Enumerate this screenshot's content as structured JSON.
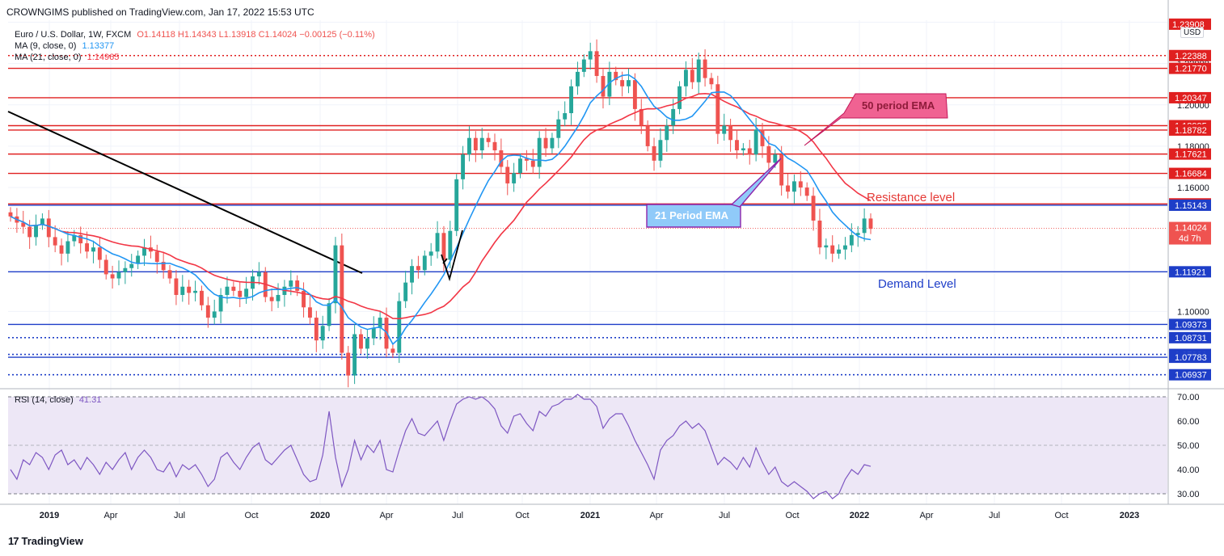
{
  "header": {
    "publisher": "CROWNGIMS published on TradingView.com, Jan 17, 2022 15:53 UTC"
  },
  "legend": {
    "symbol": "Euro / U.S. Dollar, 1W, FXCM",
    "ohlc": "O1.14118 H1.14343 L1.13918 C1.14024 −0.00125 (−0.11%)",
    "ma9_label": "MA (9, close, 0)",
    "ma9_value": "1.13377",
    "ma21_label": "MA (21, close, 0)",
    "ma21_value": "1.14965",
    "rsi_label": "RSI (14, close)",
    "rsi_value": "41.31"
  },
  "currency_badge": "USD",
  "annotations": {
    "ema50": "50 period EMA",
    "ema21": "21 Period EMA",
    "resistance": "Resistance level",
    "demand": "Demand Level"
  },
  "footer": {
    "logo_mark": "17",
    "logo_text": "TradingView"
  },
  "colors": {
    "red_level": "#e02020",
    "blue_level": "#1e3ec8",
    "ma9": "#2196f3",
    "ma21": "#f23645",
    "up": "#26a69a",
    "down": "#ef5350",
    "rsi": "#7e57c2",
    "rsi_band": "#ede7f6"
  },
  "chart_data": [
    {
      "type": "candlestick",
      "symbol": "Euro / U.S. Dollar",
      "timeframe": "1W",
      "price_axis_ticks": [
        "1.24000",
        "1.22000",
        "1.20000",
        "1.18000",
        "1.16000",
        "1.10000"
      ],
      "time_axis_ticks": [
        "2019",
        "Apr",
        "Jul",
        "Oct",
        "2020",
        "Apr",
        "Jul",
        "Oct",
        "2021",
        "Apr",
        "Jul",
        "Oct",
        "2022",
        "Apr",
        "Jul",
        "Oct",
        "2023"
      ],
      "ylim": [
        1.063,
        1.241
      ],
      "horizontal_levels": [
        {
          "value": 1.22388,
          "label": "1.22388",
          "color": "#e02020",
          "style": "dotted"
        },
        {
          "value": 1.2177,
          "label": "1.21770",
          "color": "#e02020",
          "style": "solid"
        },
        {
          "value": 1.20347,
          "label": "1.20347",
          "color": "#e02020",
          "style": "solid"
        },
        {
          "value": 1.18995,
          "label": "1.18995",
          "color": "#e02020",
          "style": "solid"
        },
        {
          "value": 1.18782,
          "label": "1.18782",
          "color": "#e02020",
          "style": "solid"
        },
        {
          "value": 1.17621,
          "label": "1.17621",
          "color": "#e02020",
          "style": "solid"
        },
        {
          "value": 1.16684,
          "label": "1.16684",
          "color": "#e02020",
          "style": "solid"
        },
        {
          "value": 1.15209,
          "label": "1.15209",
          "color": "#e02020",
          "style": "solid"
        },
        {
          "value": 1.15143,
          "label": "1.15143",
          "color": "#1e3ec8",
          "style": "solid"
        },
        {
          "value": 1.11921,
          "label": "1.11921",
          "color": "#1e3ec8",
          "style": "solid"
        },
        {
          "value": 1.09373,
          "label": "1.09373",
          "color": "#1e3ec8",
          "style": "solid"
        },
        {
          "value": 1.08731,
          "label": "1.08731",
          "color": "#1e3ec8",
          "style": "dotted"
        },
        {
          "value": 1.07921,
          "label": "1.07921",
          "color": "#1e3ec8",
          "style": "dotted"
        },
        {
          "value": 1.07783,
          "label": "1.07783",
          "color": "#1e3ec8",
          "style": "solid"
        },
        {
          "value": 1.06937,
          "label": "1.06937",
          "color": "#1e3ec8",
          "style": "dotted"
        }
      ],
      "current_price": {
        "value": 1.14024,
        "label": "1.14024",
        "countdown": "4d 7h"
      },
      "top_partial_label": {
        "value": 1.23908,
        "label": "1.23908"
      },
      "series": [
        {
          "name": "MA (9, close, 0)",
          "last": 1.13377
        },
        {
          "name": "MA (21, close, 0)",
          "last": 1.14965
        }
      ],
      "close_series": [
        1.146,
        1.143,
        1.141,
        1.136,
        1.142,
        1.145,
        1.136,
        1.132,
        1.128,
        1.134,
        1.137,
        1.133,
        1.129,
        1.131,
        1.125,
        1.118,
        1.116,
        1.119,
        1.121,
        1.123,
        1.127,
        1.131,
        1.129,
        1.124,
        1.12,
        1.116,
        1.108,
        1.112,
        1.109,
        1.11,
        1.103,
        1.097,
        1.1,
        1.108,
        1.112,
        1.11,
        1.107,
        1.111,
        1.117,
        1.119,
        1.107,
        1.105,
        1.108,
        1.112,
        1.115,
        1.11,
        1.102,
        1.097,
        1.086,
        1.093,
        1.104,
        1.132,
        1.08,
        1.069,
        1.089,
        1.082,
        1.087,
        1.092,
        1.097,
        1.082,
        1.08,
        1.105,
        1.114,
        1.122,
        1.12,
        1.127,
        1.129,
        1.138,
        1.125,
        1.139,
        1.164,
        1.176,
        1.184,
        1.178,
        1.184,
        1.182,
        1.178,
        1.17,
        1.162,
        1.167,
        1.174,
        1.173,
        1.17,
        1.184,
        1.179,
        1.184,
        1.193,
        1.196,
        1.209,
        1.216,
        1.222,
        1.226,
        1.214,
        1.204,
        1.216,
        1.212,
        1.209,
        1.212,
        1.198,
        1.19,
        1.18,
        1.173,
        1.183,
        1.19,
        1.198,
        1.209,
        1.217,
        1.211,
        1.222,
        1.213,
        1.21,
        1.186,
        1.19,
        1.183,
        1.178,
        1.179,
        1.176,
        1.188,
        1.18,
        1.172,
        1.176,
        1.161,
        1.158,
        1.163,
        1.16,
        1.156,
        1.144,
        1.131,
        1.132,
        1.128,
        1.13,
        1.132,
        1.137,
        1.138,
        1.145,
        1.14
      ],
      "rsi": {
        "name": "RSI (14, close)",
        "last": 41.31,
        "ticks": [
          "70.00",
          "60.00",
          "50.00",
          "40.00",
          "30.00"
        ],
        "band": [
          30,
          70
        ],
        "values": [
          40,
          36,
          44,
          42,
          47,
          45,
          40,
          46,
          48,
          42,
          44,
          40,
          45,
          42,
          38,
          43,
          40,
          44,
          47,
          40,
          45,
          48,
          45,
          40,
          39,
          43,
          37,
          42,
          40,
          42,
          38,
          33,
          36,
          45,
          47,
          43,
          40,
          45,
          49,
          51,
          44,
          42,
          45,
          48,
          50,
          44,
          38,
          35,
          36,
          46,
          64,
          45,
          33,
          40,
          52,
          44,
          50,
          47,
          52,
          40,
          39,
          48,
          56,
          61,
          55,
          54,
          57,
          60,
          52,
          60,
          67,
          69,
          70,
          69,
          70,
          68,
          65,
          58,
          55,
          62,
          63,
          59,
          56,
          64,
          62,
          66,
          67,
          69,
          69,
          71,
          69,
          69,
          66,
          57,
          61,
          63,
          63,
          58,
          52,
          47,
          42,
          36,
          48,
          52,
          54,
          58,
          60,
          57,
          59,
          56,
          49,
          42,
          45,
          43,
          40,
          45,
          41,
          49,
          43,
          38,
          41,
          35,
          33,
          35,
          33,
          31,
          28,
          30,
          31,
          28,
          30,
          36,
          40,
          38,
          42,
          41.31
        ]
      }
    }
  ]
}
